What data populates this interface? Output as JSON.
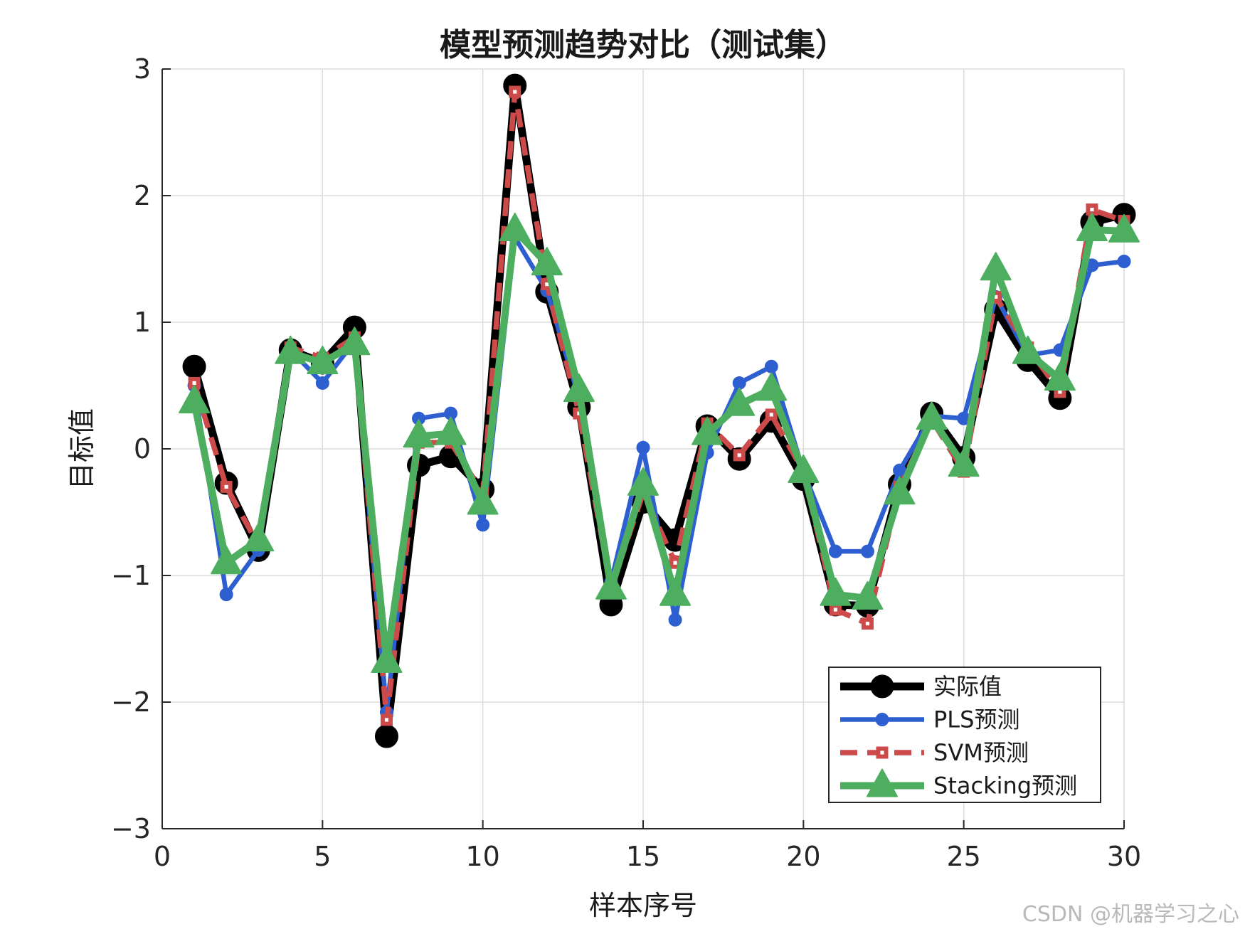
{
  "chart_data": {
    "type": "line",
    "title": "模型预测趋势对比（测试集）",
    "xlabel": "样本序号",
    "ylabel": "目标值",
    "xlim": [
      0,
      30
    ],
    "ylim": [
      -3,
      3
    ],
    "xticks": [
      0,
      5,
      10,
      15,
      20,
      25,
      30
    ],
    "yticks": [
      -3,
      -2,
      -1,
      0,
      1,
      2,
      3
    ],
    "xtick_labels": [
      "0",
      "5",
      "10",
      "15",
      "20",
      "25",
      "30"
    ],
    "ytick_labels": [
      "−3",
      "−2",
      "−1",
      "0",
      "1",
      "2",
      "3"
    ],
    "grid": true,
    "legend_position": "bottom-right",
    "x": [
      1,
      2,
      3,
      4,
      5,
      6,
      7,
      8,
      9,
      10,
      11,
      12,
      13,
      14,
      15,
      16,
      17,
      18,
      19,
      20,
      21,
      22,
      23,
      24,
      25,
      26,
      27,
      28,
      29,
      30
    ],
    "series": [
      {
        "name": "实际值",
        "color": "#000000",
        "marker": "circle",
        "line_style": "solid",
        "values": [
          0.65,
          -0.27,
          -0.8,
          0.78,
          0.68,
          0.96,
          -2.27,
          -0.13,
          -0.06,
          -0.32,
          2.87,
          1.24,
          0.33,
          -1.23,
          -0.42,
          -0.72,
          0.18,
          -0.08,
          0.22,
          -0.24,
          -1.23,
          -1.24,
          -0.28,
          0.28,
          -0.07,
          1.1,
          0.7,
          0.4,
          1.79,
          1.85
        ]
      },
      {
        "name": "PLS预测",
        "color": "#2e5fd0",
        "marker": "circle",
        "line_style": "solid",
        "values": [
          0.5,
          -1.15,
          -0.8,
          0.78,
          0.52,
          0.85,
          -2.08,
          0.24,
          0.28,
          -0.6,
          1.67,
          1.25,
          0.4,
          -1.05,
          0.01,
          -1.35,
          -0.03,
          0.52,
          0.65,
          -0.18,
          -0.81,
          -0.81,
          -0.17,
          0.26,
          0.24,
          1.2,
          0.74,
          0.78,
          1.45,
          1.48
        ]
      },
      {
        "name": "SVM预测",
        "color": "#cc4a4a",
        "marker": "square",
        "line_style": "dashed",
        "values": [
          0.52,
          -0.3,
          -0.76,
          0.8,
          0.72,
          0.88,
          -2.14,
          0.05,
          0.05,
          -0.35,
          2.82,
          1.3,
          0.28,
          -1.1,
          -0.35,
          -0.9,
          0.2,
          -0.05,
          0.27,
          -0.18,
          -1.27,
          -1.38,
          -0.3,
          0.23,
          -0.18,
          1.2,
          0.8,
          0.45,
          1.89,
          1.8
        ]
      },
      {
        "name": "Stacking预测",
        "color": "#4cae5e",
        "marker": "triangle",
        "line_style": "solid",
        "values": [
          0.37,
          -0.9,
          -0.72,
          0.76,
          0.68,
          0.83,
          -1.68,
          0.1,
          0.12,
          -0.43,
          1.73,
          1.46,
          0.46,
          -1.1,
          -0.28,
          -1.15,
          0.12,
          0.35,
          0.47,
          -0.18,
          -1.15,
          -1.18,
          -0.35,
          0.24,
          -0.13,
          1.42,
          0.76,
          0.55,
          1.73,
          1.72
        ]
      }
    ]
  },
  "watermark": "CSDN @机器学习之心"
}
